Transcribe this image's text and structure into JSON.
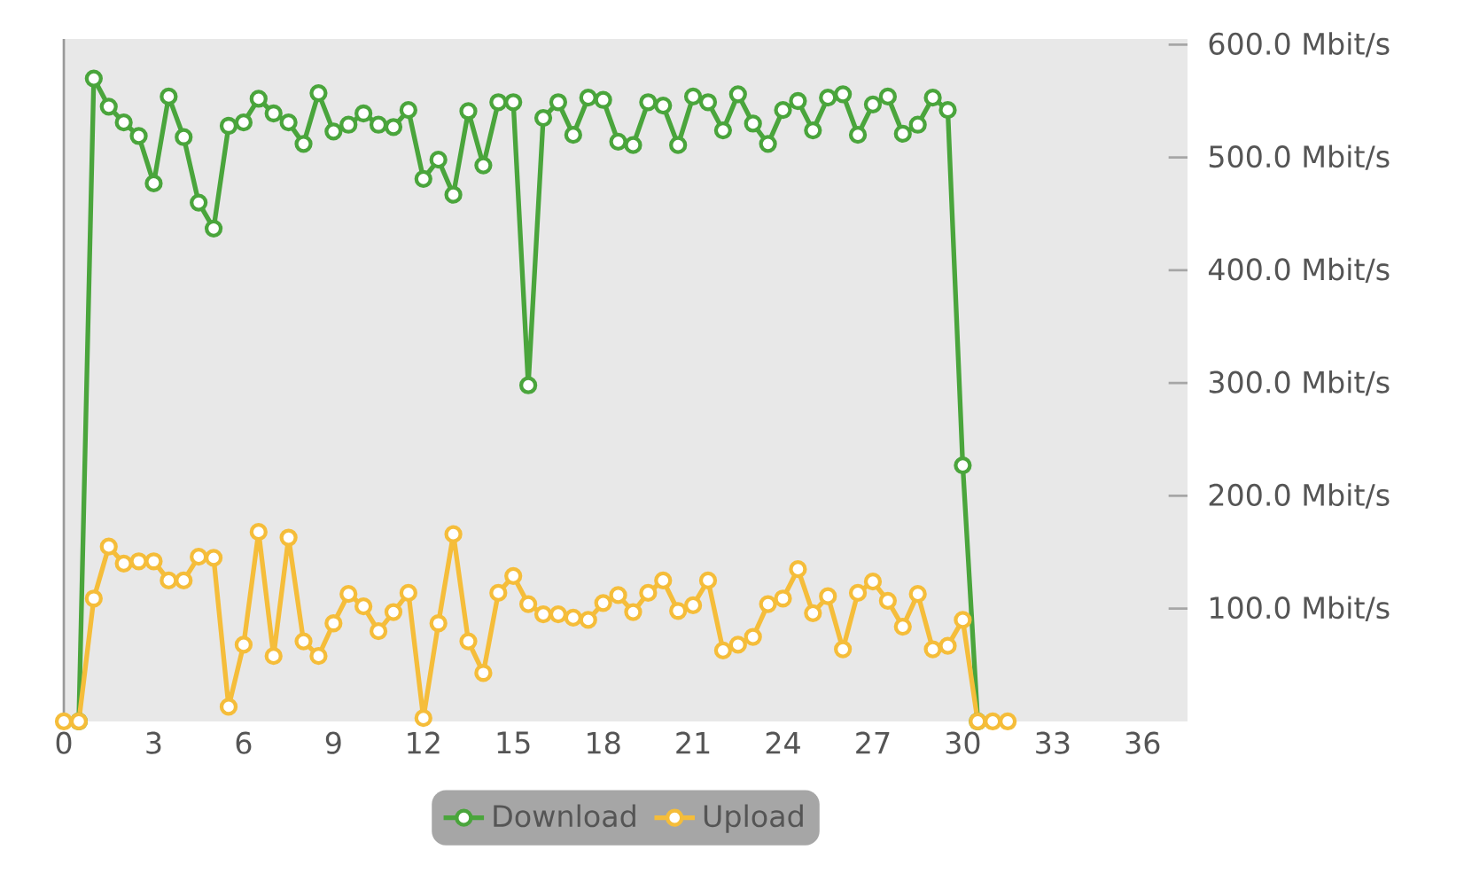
{
  "chart_data": {
    "type": "line",
    "xlim": [
      0,
      37.5
    ],
    "ylim": [
      0,
      605
    ],
    "xticks": [
      0,
      3,
      6,
      9,
      12,
      15,
      18,
      21,
      24,
      27,
      30,
      33,
      36
    ],
    "yticks": [
      {
        "value": 100,
        "label": "100.0 Mbit/s"
      },
      {
        "value": 200,
        "label": "200.0 Mbit/s"
      },
      {
        "value": 300,
        "label": "300.0 Mbit/s"
      },
      {
        "value": 400,
        "label": "400.0 Mbit/s"
      },
      {
        "value": 500,
        "label": "500.0 Mbit/s"
      },
      {
        "value": 600,
        "label": "600.0 Mbit/s"
      }
    ],
    "grid": false,
    "legend": "bottom",
    "marker": "circle",
    "line_style": "solid",
    "series": [
      {
        "name": "Download",
        "color": "#4aa53c",
        "x": [
          0.5,
          1,
          1.5,
          2,
          2.5,
          3,
          3.5,
          4,
          4.5,
          5,
          5.5,
          6,
          6.5,
          7,
          7.5,
          8,
          8.5,
          9,
          9.5,
          10,
          10.5,
          11,
          11.5,
          12,
          12.5,
          13,
          13.5,
          14,
          14.5,
          15,
          15.5,
          16,
          16.5,
          17,
          17.5,
          18,
          18.5,
          19,
          19.5,
          20,
          20.5,
          21,
          21.5,
          22,
          22.5,
          23,
          23.5,
          24,
          24.5,
          25,
          25.5,
          26,
          26.5,
          27,
          27.5,
          28,
          28.5,
          29,
          29.5,
          30,
          30.5
        ],
        "values": [
          0,
          570,
          545,
          531,
          519,
          477,
          554,
          518,
          460,
          437,
          528,
          531,
          552,
          539,
          531,
          512,
          557,
          523,
          529,
          539,
          529,
          527,
          542,
          481,
          498,
          467,
          541,
          493,
          549,
          549,
          298,
          535,
          549,
          520,
          553,
          551,
          514,
          511,
          549,
          546,
          511,
          554,
          549,
          524,
          556,
          530,
          512,
          542,
          550,
          524,
          553,
          556,
          520,
          547,
          554,
          521,
          529,
          553,
          542,
          227,
          0
        ]
      },
      {
        "name": "Upload",
        "color": "#f5bd3a",
        "x": [
          0,
          0.5,
          1,
          1.5,
          2,
          2.5,
          3,
          3.5,
          4,
          4.5,
          5,
          5.5,
          6,
          6.5,
          7,
          7.5,
          8,
          8.5,
          9,
          9.5,
          10,
          10.5,
          11,
          11.5,
          12,
          12.5,
          13,
          13.5,
          14,
          14.5,
          15,
          15.5,
          16,
          16.5,
          17,
          17.5,
          18,
          18.5,
          19,
          19.5,
          20,
          20.5,
          21,
          21.5,
          22,
          22.5,
          23,
          23.5,
          24,
          24.5,
          25,
          25.5,
          26,
          26.5,
          27,
          27.5,
          28,
          28.5,
          29,
          29.5,
          30,
          30.5,
          31,
          31.5
        ],
        "values": [
          0,
          0,
          109,
          155,
          140,
          142,
          142,
          125,
          125,
          146,
          145,
          13,
          68,
          168,
          58,
          163,
          71,
          58,
          87,
          113,
          102,
          80,
          97,
          114,
          3,
          87,
          166,
          71,
          43,
          114,
          129,
          104,
          95,
          95,
          92,
          90,
          105,
          112,
          97,
          114,
          125,
          98,
          103,
          125,
          63,
          68,
          75,
          104,
          109,
          135,
          96,
          111,
          64,
          114,
          124,
          107,
          84,
          113,
          64,
          67,
          90,
          0,
          0,
          0
        ]
      }
    ]
  }
}
